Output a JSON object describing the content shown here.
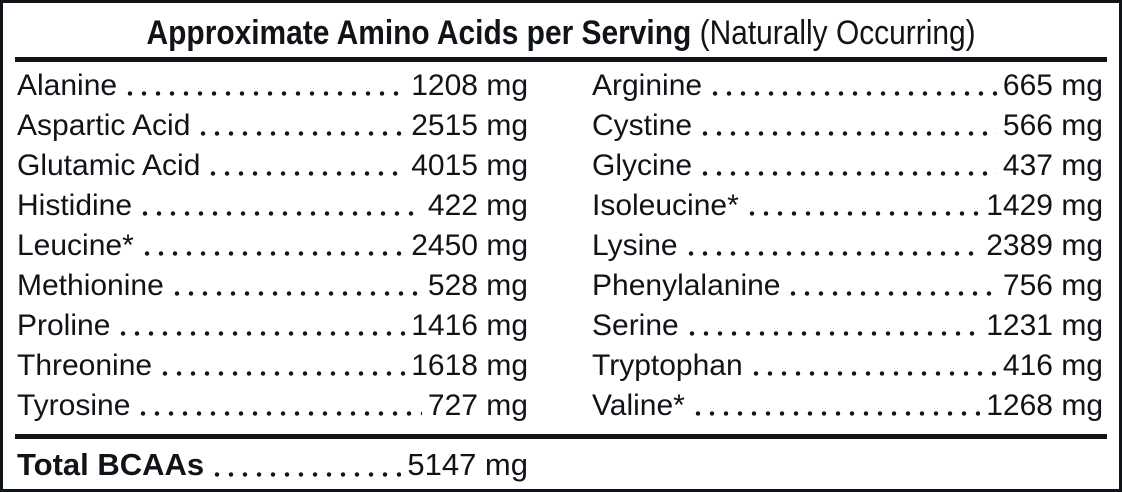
{
  "title": {
    "main": "Approximate Amino Acids per Serving",
    "suffix": " (Naturally Occurring)"
  },
  "rows": {
    "left": [
      {
        "name": "Alanine",
        "value": "1208 mg"
      },
      {
        "name": "Aspartic Acid",
        "value": "2515 mg"
      },
      {
        "name": "Glutamic Acid",
        "value": "4015 mg"
      },
      {
        "name": "Histidine",
        "value": "422 mg"
      },
      {
        "name": "Leucine*",
        "value": "2450 mg"
      },
      {
        "name": "Methionine",
        "value": "528 mg"
      },
      {
        "name": "Proline",
        "value": "1416 mg"
      },
      {
        "name": "Threonine",
        "value": "1618 mg"
      },
      {
        "name": "Tyrosine",
        "value": "727 mg"
      }
    ],
    "right": [
      {
        "name": "Arginine",
        "value": "665 mg"
      },
      {
        "name": "Cystine",
        "value": "566 mg"
      },
      {
        "name": "Glycine",
        "value": "437 mg"
      },
      {
        "name": "Isoleucine*",
        "value": "1429 mg"
      },
      {
        "name": "Lysine",
        "value": "2389 mg"
      },
      {
        "name": "Phenylalanine",
        "value": "756 mg"
      },
      {
        "name": "Serine",
        "value": "1231 mg"
      },
      {
        "name": "Tryptophan",
        "value": "416 mg"
      },
      {
        "name": "Valine*",
        "value": "1268 mg"
      }
    ]
  },
  "total": {
    "label": "Total BCAAs",
    "value": "5147 mg"
  },
  "colors": {
    "text": "#101418",
    "border": "#101418",
    "background": "#ffffff"
  }
}
